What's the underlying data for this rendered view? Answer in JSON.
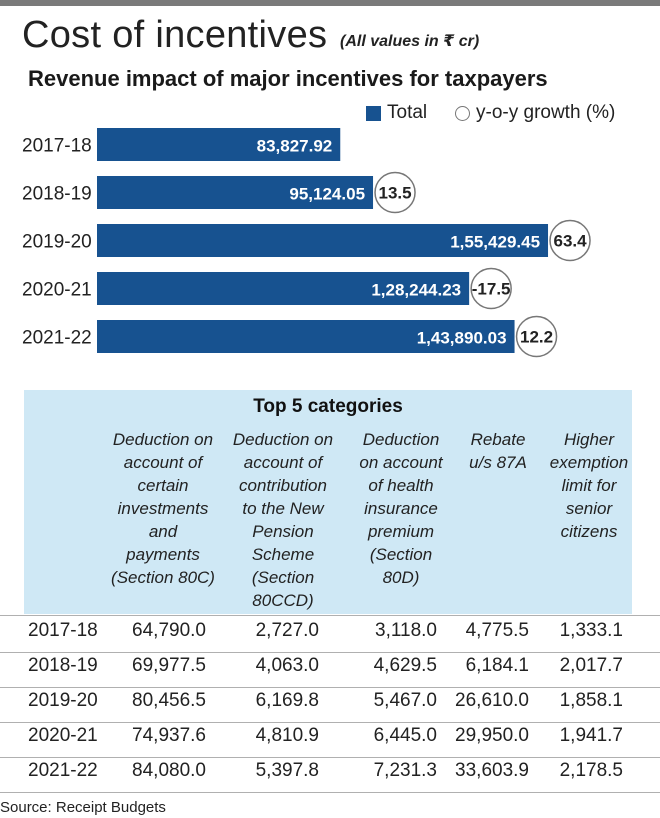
{
  "header": {
    "title": "Cost of incentives",
    "unit_note": "(All values in ₹ cr)",
    "subtitle": "Revenue impact of major incentives for taxpayers"
  },
  "legend": {
    "total": "Total",
    "growth": "y-o-y growth (%)"
  },
  "colors": {
    "bar": "#175290",
    "table_bg": "#cfe8f5"
  },
  "chart_data": [
    {
      "type": "bar",
      "orientation": "horizontal",
      "title": "Revenue impact of major incentives for taxpayers",
      "categories": [
        "2017-18",
        "2018-19",
        "2019-20",
        "2020-21",
        "2021-22"
      ],
      "series": [
        {
          "name": "Total",
          "values": [
            83827.92,
            95124.05,
            155429.45,
            128244.23,
            143890.03
          ],
          "labels": [
            "83,827.92",
            "95,124.05",
            "1,55,429.45",
            "1,28,244.23",
            "1,43,890.03"
          ]
        },
        {
          "name": "y-o-y growth (%)",
          "values": [
            null,
            13.5,
            63.4,
            -17.5,
            12.2
          ],
          "labels": [
            "",
            "13.5",
            "63.4",
            "-17.5",
            "12.2"
          ]
        }
      ],
      "xlim": [
        0,
        163000
      ],
      "legend_position": "top-right",
      "grid": false
    },
    {
      "type": "table",
      "title": "Top 5 categories",
      "columns": [
        "Deduction on account of certain investments and payments (Section 80C)",
        "Deduction on account of contribution to the New Pension Scheme (Section 80CCD)",
        "Deduction on account of health insurance premium (Section 80D)",
        "Rebate u/s 87A",
        "Higher exemption limit for senior citizens"
      ],
      "rows": [
        {
          "year": "2017-18",
          "values": [
            "64,790.0",
            "2,727.0",
            "3,118.0",
            "4,775.5",
            "1,333.1"
          ]
        },
        {
          "year": "2018-19",
          "values": [
            "69,977.5",
            "4,063.0",
            "4,629.5",
            "6,184.1",
            "2,017.7"
          ]
        },
        {
          "year": "2019-20",
          "values": [
            "80,456.5",
            "6,169.8",
            "5,467.0",
            "26,610.0",
            "1,858.1"
          ]
        },
        {
          "year": "2020-21",
          "values": [
            "74,937.6",
            "4,810.9",
            "6,445.0",
            "29,950.0",
            "1,941.7"
          ]
        },
        {
          "year": "2021-22",
          "values": [
            "84,080.0",
            "5,397.8",
            "7,231.3",
            "33,603.9",
            "2,178.5"
          ]
        }
      ]
    }
  ],
  "table": {
    "caption": "Top 5 categories",
    "headers": [
      [
        "Deduction on",
        "account of",
        "certain",
        "investments",
        "and",
        "payments",
        "(Section 80C)"
      ],
      [
        "Deduction on",
        "account of",
        "contribution",
        "to the New",
        "Pension",
        "Scheme",
        "(Section",
        "80CCD)"
      ],
      [
        "Deduction",
        "on account",
        "of health",
        "insurance",
        "premium",
        "(Section",
        "80D)"
      ],
      [
        "Rebate",
        "u/s 87A"
      ],
      [
        "Higher",
        "exemption",
        "limit for",
        "senior",
        "citizens"
      ]
    ]
  },
  "source": "Source: Receipt Budgets"
}
